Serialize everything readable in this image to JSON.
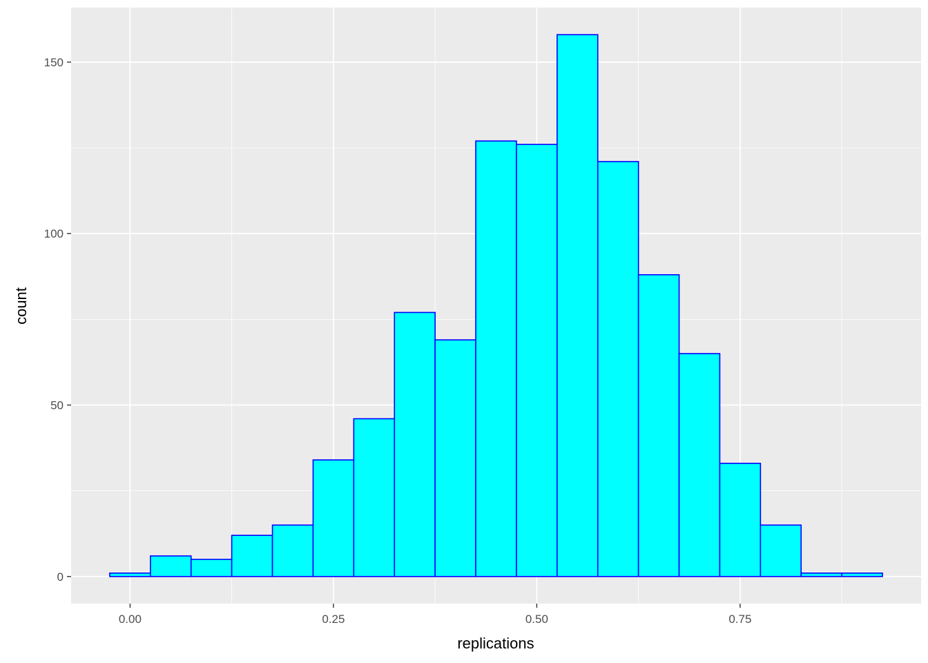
{
  "chart_data": {
    "type": "bar",
    "subtype": "histogram",
    "title": "",
    "xlabel": "replications",
    "ylabel": "count",
    "bins": [
      {
        "x0": -0.025,
        "x1": 0.025,
        "count": 1
      },
      {
        "x0": 0.025,
        "x1": 0.075,
        "count": 6
      },
      {
        "x0": 0.075,
        "x1": 0.125,
        "count": 5
      },
      {
        "x0": 0.125,
        "x1": 0.175,
        "count": 12
      },
      {
        "x0": 0.175,
        "x1": 0.225,
        "count": 15
      },
      {
        "x0": 0.225,
        "x1": 0.275,
        "count": 34
      },
      {
        "x0": 0.275,
        "x1": 0.325,
        "count": 46
      },
      {
        "x0": 0.325,
        "x1": 0.375,
        "count": 77
      },
      {
        "x0": 0.375,
        "x1": 0.425,
        "count": 69
      },
      {
        "x0": 0.425,
        "x1": 0.475,
        "count": 127
      },
      {
        "x0": 0.475,
        "x1": 0.525,
        "count": 126
      },
      {
        "x0": 0.525,
        "x1": 0.575,
        "count": 158
      },
      {
        "x0": 0.575,
        "x1": 0.625,
        "count": 121
      },
      {
        "x0": 0.625,
        "x1": 0.675,
        "count": 88
      },
      {
        "x0": 0.675,
        "x1": 0.725,
        "count": 65
      },
      {
        "x0": 0.725,
        "x1": 0.775,
        "count": 33
      },
      {
        "x0": 0.775,
        "x1": 0.825,
        "count": 15
      },
      {
        "x0": 0.825,
        "x1": 0.875,
        "count": 1
      },
      {
        "x0": 0.875,
        "x1": 0.925,
        "count": 1
      }
    ],
    "xlim": [
      -0.0725,
      0.9725
    ],
    "ylim": [
      -7.9,
      165.9
    ],
    "x_ticks": [
      0.0,
      0.25,
      0.5,
      0.75
    ],
    "x_tick_labels": [
      "0.00",
      "0.25",
      "0.50",
      "0.75"
    ],
    "y_ticks": [
      0,
      50,
      100,
      150
    ],
    "y_tick_labels": [
      "0",
      "50",
      "100",
      "150"
    ],
    "grid": true,
    "legend": "none",
    "colors": {
      "panel_background": "#EBEBEB",
      "grid_line": "#FFFFFF",
      "bar_fill": "#00FFFF",
      "bar_outline": "#0000FF",
      "tick_label": "#4D4D4D",
      "tick_mark": "#333333",
      "axis_title": "#000000"
    }
  }
}
